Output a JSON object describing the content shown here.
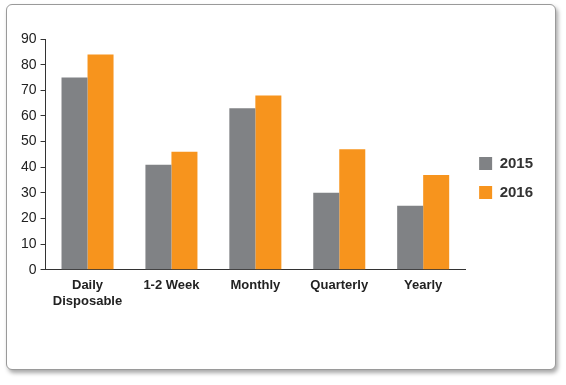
{
  "chart_data": {
    "type": "bar",
    "categories": [
      "Daily Disposable",
      "1-2 Week",
      "Monthly",
      "Quarterly",
      "Yearly"
    ],
    "series": [
      {
        "name": "2015",
        "color": "#808285",
        "values": [
          75,
          41,
          63,
          30,
          25
        ]
      },
      {
        "name": "2016",
        "color": "#f7941d",
        "values": [
          84,
          46,
          68,
          47,
          37
        ]
      }
    ],
    "ylim": [
      0,
      90
    ],
    "yticks": [
      0,
      10,
      20,
      30,
      40,
      50,
      60,
      70,
      80,
      90
    ],
    "grid": false,
    "legend": "right"
  }
}
